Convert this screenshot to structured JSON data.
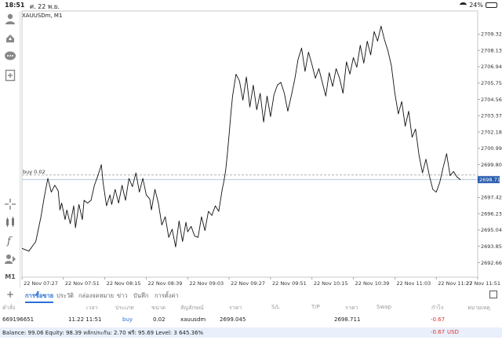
{
  "status_bar": {
    "time": "18:51",
    "date": "ศ. 22 พ.ย.",
    "battery": "24%",
    "battery_level": 0.24
  },
  "chart": {
    "symbol_label": "XAUUSDm, M1",
    "order_line_label": "buy 0.02",
    "order_price": 2699.045,
    "current_price_label": "2698.711",
    "current_price": 2698.711
  },
  "left_tools": {
    "items": [
      {
        "name": "user-icon"
      },
      {
        "name": "signal-icon"
      },
      {
        "name": "chat-icon"
      },
      {
        "name": "add-file-icon"
      },
      {
        "name": "crosshair-icon"
      },
      {
        "name": "indicator-icon"
      },
      {
        "name": "function-icon"
      },
      {
        "name": "objects-icon"
      },
      {
        "name": "timeframe-label",
        "label": "M1"
      }
    ]
  },
  "chart_data": {
    "type": "line",
    "title": "XAUUSDm, M1",
    "ylim": [
      2691.6,
      2711.0
    ],
    "y_ticks": [
      "2709.320",
      "2708.130",
      "2706.940",
      "2705.750",
      "2704.560",
      "2703.370",
      "2702.180",
      "2700.990",
      "2699.800",
      "2698.711",
      "2697.420",
      "2696.230",
      "2695.040",
      "2693.850",
      "2692.660"
    ],
    "y_tick_values": [
      2709.32,
      2708.13,
      2706.94,
      2705.75,
      2704.56,
      2703.37,
      2702.18,
      2700.99,
      2699.8,
      2698.711,
      2697.42,
      2696.23,
      2695.04,
      2693.85,
      2692.66
    ],
    "x_ticks": [
      "22 Nov 07:27",
      "22 Nov 07:51",
      "22 Nov 08:15",
      "22 Nov 08:39",
      "22 Nov 09:03",
      "22 Nov 09:27",
      "22 Nov 09:51",
      "22 Nov 10:15",
      "22 Nov 10:39",
      "22 Nov 11:03",
      "22 Nov 11:27",
      "22 Nov 11:51"
    ],
    "x_tick_values": [
      0,
      24,
      48,
      72,
      96,
      120,
      144,
      168,
      192,
      216,
      240,
      264
    ],
    "grid": false,
    "series": [
      {
        "x": [
          0,
          4,
          8,
          11,
          13,
          15,
          17,
          19,
          21,
          22,
          23,
          25,
          26,
          28,
          30,
          31,
          33,
          35,
          36,
          38,
          40,
          42,
          44,
          46,
          47,
          49,
          51,
          52,
          54,
          56,
          58,
          60,
          62,
          64,
          66,
          68,
          70,
          72,
          74,
          75,
          77,
          79,
          81,
          83,
          85,
          87,
          89,
          91,
          93,
          95,
          96,
          98,
          100,
          102,
          104,
          106,
          108,
          110,
          112,
          114,
          116,
          117,
          118,
          119,
          120,
          121,
          122,
          124,
          126,
          128,
          130,
          132,
          134,
          136,
          138,
          140,
          142,
          144,
          146,
          148,
          150,
          152,
          154,
          156,
          158,
          160,
          162,
          164,
          166,
          168,
          170,
          172,
          174,
          176,
          178,
          180,
          182,
          184,
          186,
          188,
          190,
          192,
          194,
          196,
          198,
          200,
          202,
          204,
          206,
          208,
          210,
          212,
          214,
          216,
          218,
          220,
          222,
          224,
          226,
          228,
          230,
          232,
          234,
          236,
          238,
          240,
          242,
          244,
          246,
          248,
          250,
          252,
          254
        ],
        "y": [
          2693.7,
          2693.5,
          2694.2,
          2696.0,
          2697.5,
          2698.8,
          2697.8,
          2698.3,
          2697.9,
          2696.5,
          2697.0,
          2695.8,
          2696.5,
          2695.5,
          2696.8,
          2695.2,
          2696.9,
          2695.8,
          2697.2,
          2697.0,
          2697.2,
          2698.3,
          2699.0,
          2699.8,
          2698.5,
          2696.8,
          2697.6,
          2696.9,
          2698.0,
          2697.0,
          2698.3,
          2697.2,
          2698.8,
          2698.2,
          2699.2,
          2697.8,
          2698.8,
          2697.6,
          2697.3,
          2696.5,
          2698.0,
          2697.0,
          2695.4,
          2696.0,
          2694.5,
          2695.1,
          2693.8,
          2695.7,
          2694.2,
          2695.6,
          2694.9,
          2695.3,
          2694.6,
          2694.5,
          2696.0,
          2695.0,
          2696.4,
          2696.1,
          2696.8,
          2696.4,
          2698.0,
          2698.6,
          2699.4,
          2700.6,
          2702.0,
          2703.5,
          2704.8,
          2706.4,
          2705.9,
          2704.5,
          2706.2,
          2704.0,
          2705.6,
          2703.8,
          2705.0,
          2702.9,
          2704.8,
          2703.3,
          2704.9,
          2705.6,
          2705.8,
          2705.0,
          2703.7,
          2704.8,
          2706.0,
          2707.5,
          2708.3,
          2706.6,
          2708.0,
          2707.1,
          2706.1,
          2706.8,
          2705.8,
          2704.8,
          2706.5,
          2705.5,
          2706.8,
          2706.1,
          2705.0,
          2707.3,
          2706.4,
          2707.6,
          2706.9,
          2708.5,
          2707.2,
          2708.8,
          2707.8,
          2709.5,
          2708.8,
          2709.9,
          2708.9,
          2708.1,
          2707.0,
          2705.0,
          2703.5,
          2704.4,
          2702.6,
          2703.7,
          2701.8,
          2702.4,
          2700.5,
          2699.2,
          2700.2,
          2699.0,
          2698.0,
          2697.8,
          2698.5,
          2699.6,
          2700.6,
          2699.0,
          2699.3,
          2698.9,
          2698.7
        ]
      }
    ]
  },
  "bottom": {
    "add_label": "+",
    "tabs": [
      "การซื้อขาย",
      "ประวัติ",
      "กล่องจดหมาย",
      "ข่าว",
      "บันทึก",
      "การตั้งค่า"
    ],
    "active_tab": 0,
    "table": {
      "headers": [
        "คำสั่ง",
        "เวลา",
        "ประเภท",
        "ขนาด",
        "สัญลักษณ์",
        "ราคา",
        "S/L",
        "T/P",
        "ราคา",
        "Swap",
        "กำไร",
        "หมายเหตุ"
      ],
      "rows": [
        {
          "order": "669196651",
          "time": "11.22 11:51",
          "type": "buy",
          "volume": "0.02",
          "symbol": "xauusdm",
          "price": "2699.045",
          "current_price": "2698.711",
          "profit": "-0.67"
        }
      ]
    },
    "balance_text": "Balance: 99.06 Equity: 98.39 หลักประกัน: 2.70 ฟรี: 95.69 Level: 3 645.36%",
    "total_profit": "-0.67",
    "currency": "USD"
  }
}
